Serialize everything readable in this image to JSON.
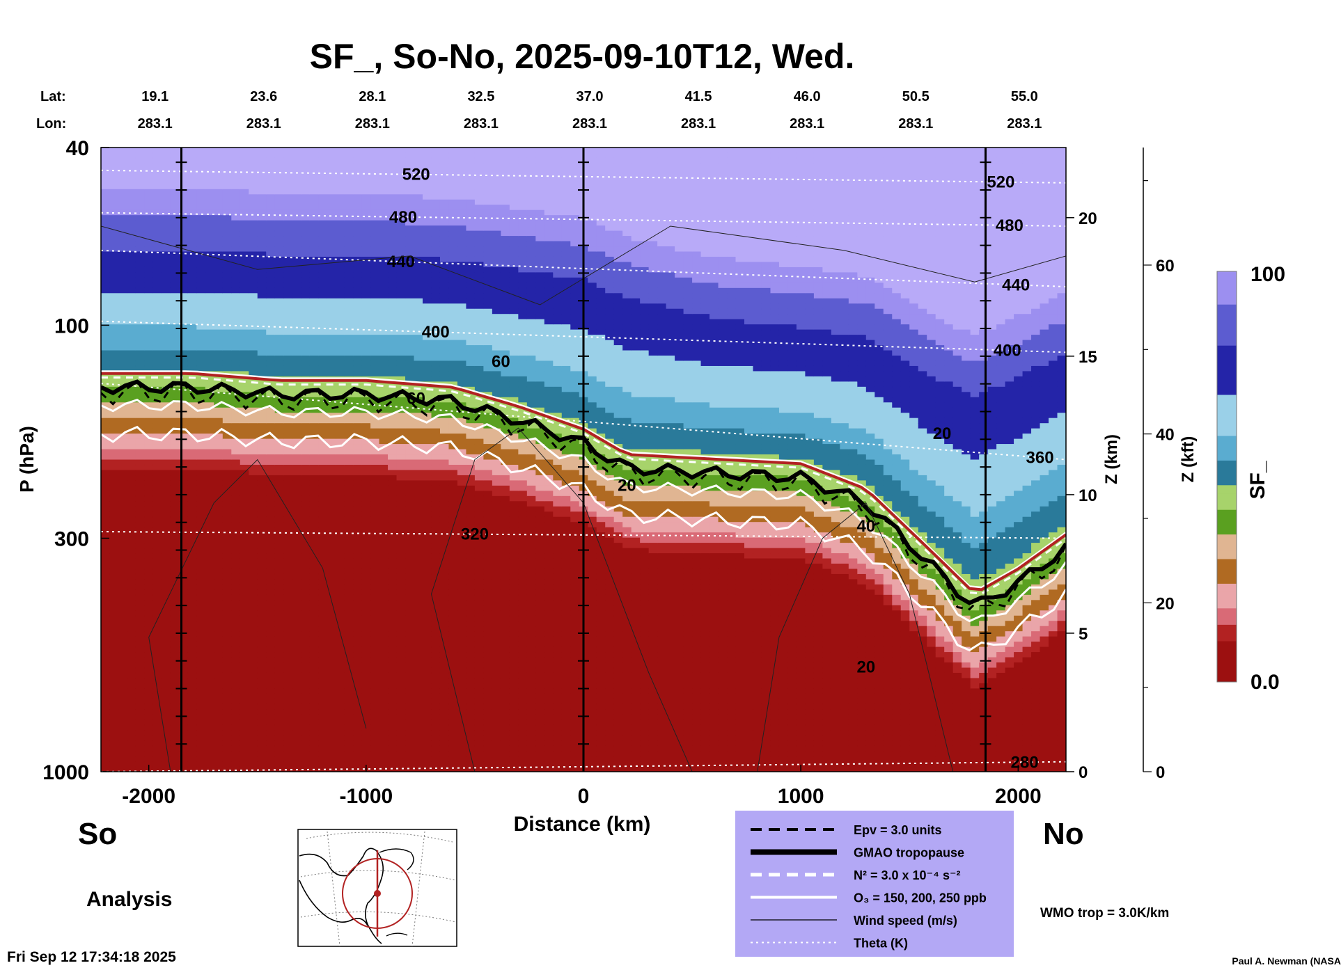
{
  "chart_data": {
    "type": "heatmap",
    "title": "SF_, So-No, 2025-09-10T12, Wed.",
    "xlabel": "Distance (km)",
    "ylabel": "P (hPa)",
    "z_km_label": "Z (km)",
    "z_kft_label": "Z (kft)",
    "colorbar_label": "SF_",
    "colorbar_range": [
      0.0,
      100
    ],
    "colorbar_max_label": "100",
    "colorbar_min_label": "0.0",
    "xlim": [
      -2220,
      2220
    ],
    "ylim": [
      1000,
      40
    ],
    "y_scale": "log",
    "x_ticks": [
      {
        "value": -2000,
        "label": "-2000"
      },
      {
        "value": -1000,
        "label": "-1000"
      },
      {
        "value": 0,
        "label": "0"
      },
      {
        "value": 1000,
        "label": "1000"
      },
      {
        "value": 2000,
        "label": "2000"
      }
    ],
    "y_ticks": [
      {
        "value": 40,
        "label": "40"
      },
      {
        "value": 100,
        "label": "100"
      },
      {
        "value": 300,
        "label": "300"
      },
      {
        "value": 1000,
        "label": "1000"
      }
    ],
    "z_km_ticks": [
      {
        "value": 0,
        "label": "0"
      },
      {
        "value": 5,
        "label": "5"
      },
      {
        "value": 10,
        "label": "10"
      },
      {
        "value": 15,
        "label": "15"
      },
      {
        "value": 20,
        "label": "20"
      }
    ],
    "z_kft_ticks": [
      {
        "value": 0,
        "label": "0"
      },
      {
        "value": 20,
        "label": "20"
      },
      {
        "value": 40,
        "label": "40"
      },
      {
        "value": 60,
        "label": "60"
      }
    ],
    "lat_label": "Lat:",
    "lon_label": "Lon:",
    "top_axis": [
      {
        "distance": -2000,
        "lat": "19.1",
        "lon": "283.1"
      },
      {
        "distance": -1500,
        "lat": "23.6",
        "lon": "283.1"
      },
      {
        "distance": -1000,
        "lat": "28.1",
        "lon": "283.1"
      },
      {
        "distance": -500,
        "lat": "32.5",
        "lon": "283.1"
      },
      {
        "distance": 0,
        "lat": "37.0",
        "lon": "283.1"
      },
      {
        "distance": 500,
        "lat": "41.5",
        "lon": "283.1"
      },
      {
        "distance": 1000,
        "lat": "46.0",
        "lon": "283.1"
      },
      {
        "distance": 1500,
        "lat": "50.5",
        "lon": "283.1"
      },
      {
        "distance": 2000,
        "lat": "55.0",
        "lon": "283.1"
      }
    ],
    "vertical_markers_km": [
      -1850,
      0,
      1850
    ],
    "sf_profile": [
      {
        "x": -2220,
        "tropo": 135,
        "top": 70
      },
      {
        "x": -1800,
        "tropo": 135,
        "top": 70
      },
      {
        "x": -1400,
        "tropo": 140,
        "top": 72
      },
      {
        "x": -1000,
        "tropo": 140,
        "top": 72
      },
      {
        "x": -600,
        "tropo": 145,
        "top": 74
      },
      {
        "x": -300,
        "tropo": 160,
        "top": 78
      },
      {
        "x": 0,
        "tropo": 180,
        "top": 82
      },
      {
        "x": 200,
        "tropo": 205,
        "top": 90
      },
      {
        "x": 600,
        "tropo": 210,
        "top": 100
      },
      {
        "x": 1000,
        "tropo": 215,
        "top": 105
      },
      {
        "x": 1300,
        "tropo": 245,
        "top": 110
      },
      {
        "x": 1550,
        "tropo": 320,
        "top": 130
      },
      {
        "x": 1800,
        "tropo": 420,
        "top": 150
      },
      {
        "x": 2000,
        "tropo": 370,
        "top": 135
      },
      {
        "x": 2220,
        "tropo": 310,
        "top": 120
      }
    ],
    "color_scale": [
      {
        "level": 0,
        "color": "#9c1010"
      },
      {
        "level": 10,
        "color": "#b22222"
      },
      {
        "level": 14,
        "color": "#d96a76"
      },
      {
        "level": 18,
        "color": "#eaa5a9"
      },
      {
        "level": 24,
        "color": "#b06a22"
      },
      {
        "level": 30,
        "color": "#e0b592"
      },
      {
        "level": 36,
        "color": "#5aa020"
      },
      {
        "level": 42,
        "color": "#a7d36b"
      },
      {
        "level": 48,
        "color": "#2a7a9a"
      },
      {
        "level": 54,
        "color": "#5aacd0"
      },
      {
        "level": 60,
        "color": "#9ad0e8"
      },
      {
        "level": 70,
        "color": "#2424a8"
      },
      {
        "level": 82,
        "color": "#5c5cd0"
      },
      {
        "level": 92,
        "color": "#9c8ff0"
      },
      {
        "level": 100,
        "color": "#b8aaf8"
      }
    ],
    "theta_contours": [
      {
        "label": "520",
        "p_left": 45,
        "p_right": 48
      },
      {
        "label": "480",
        "p_left": 56,
        "p_right": 60
      },
      {
        "label": "440",
        "p_left": 68,
        "p_right": 82
      },
      {
        "label": "400",
        "p_left": 98,
        "p_right": 115
      },
      {
        "label": "360",
        "p_left": 135,
        "p_right": 200
      },
      {
        "label": "320",
        "p_left": 290,
        "p_right": 300
      },
      {
        "label": "280",
        "p_left": 1000,
        "p_right": 950
      }
    ],
    "wind_labels": [
      {
        "label": "20",
        "x": 1650,
        "p": 180
      },
      {
        "label": "20",
        "x": 200,
        "p": 235
      },
      {
        "label": "40",
        "x": 1300,
        "p": 290
      },
      {
        "label": "20",
        "x": 1300,
        "p": 600
      },
      {
        "label": "60",
        "x": -380,
        "p": 124
      },
      {
        "label": "60",
        "x": -770,
        "p": 150
      }
    ],
    "legend": {
      "items": [
        {
          "style": "dashed-black",
          "label": "Epv = 3.0 units"
        },
        {
          "style": "thick-black",
          "label": "GMAO tropopause"
        },
        {
          "style": "dashed-white",
          "label": "N² = 3.0 x 10⁻⁴ s⁻²"
        },
        {
          "style": "solid-white",
          "label": "O₃ = 150, 200, 250 ppb"
        },
        {
          "style": "thin-black",
          "label": "Wind speed (m/s)"
        },
        {
          "style": "dotted-white",
          "label": "Theta (K)"
        }
      ],
      "background": "#b3a8f5"
    },
    "wmo_label": "WMO trop = 3.0K/km",
    "wmo_color": "#b22222",
    "left_end_label": "So",
    "right_end_label": "No",
    "analysis_label": "Analysis",
    "timestamp": "Fri Sep 12 17:34:18 2025",
    "credit": "Paul A. Newman (NASA"
  }
}
